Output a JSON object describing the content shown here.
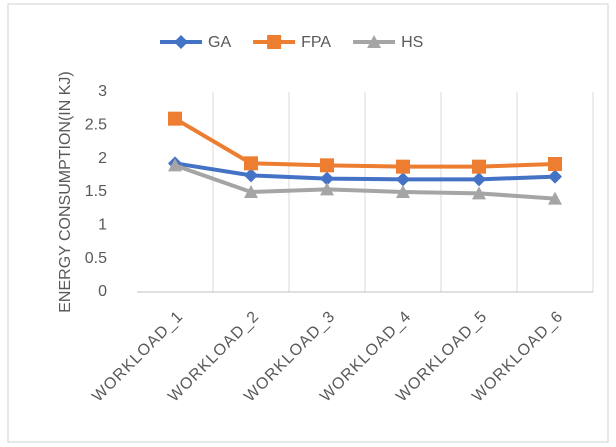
{
  "chart_data": {
    "type": "line",
    "categories": [
      "WORKLOAD_1",
      "WORKLOAD_2",
      "WORKLOAD_3",
      "WORKLOAD_4",
      "WORKLOAD_5",
      "WORKLOAD_6"
    ],
    "series": [
      {
        "name": "GA",
        "color": "#4472c4",
        "marker": "diamond",
        "values": [
          1.93,
          1.75,
          1.7,
          1.69,
          1.69,
          1.73
        ]
      },
      {
        "name": "FPA",
        "color": "#ed7d31",
        "marker": "square",
        "values": [
          2.6,
          1.93,
          1.9,
          1.88,
          1.88,
          1.92
        ]
      },
      {
        "name": "HS",
        "color": "#a5a5a5",
        "marker": "triangle",
        "values": [
          1.9,
          1.5,
          1.54,
          1.5,
          1.48,
          1.4
        ]
      }
    ],
    "y_label": "ENERGY CONSUMPTION(IN KJ)",
    "ylim": [
      0,
      3
    ],
    "yticks": [
      0,
      0.5,
      1,
      1.5,
      2,
      2.5,
      3
    ],
    "legend": "top"
  }
}
